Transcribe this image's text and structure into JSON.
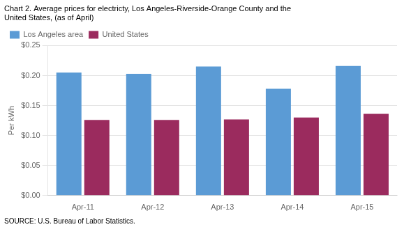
{
  "chart_data": {
    "type": "bar",
    "title": [
      "Chart 2. Average prices for electricty, Los Angeles-Riverside-Orange County and the",
      "United States, (as of April)"
    ],
    "ylabel": "Per kWh",
    "annotations": [
      "SOURCE: U.S. Bureau of Labor Statistics."
    ],
    "categories": [
      "Apr-11",
      "Apr-12",
      "Apr-13",
      "Apr-14",
      "Apr-15"
    ],
    "series": [
      {
        "name": "Los Angeles area",
        "color": "#5B9BD5",
        "values": [
          0.205,
          0.203,
          0.215,
          0.178,
          0.216
        ]
      },
      {
        "name": "United States",
        "color": "#9B2B5E",
        "values": [
          0.126,
          0.126,
          0.127,
          0.13,
          0.136
        ]
      }
    ],
    "ylim": [
      0,
      0.25
    ],
    "yticks": [
      {
        "value": 0.0,
        "label": "$0.00"
      },
      {
        "value": 0.05,
        "label": "$0.05"
      },
      {
        "value": 0.1,
        "label": "$0.10"
      },
      {
        "value": 0.15,
        "label": "$0.15"
      },
      {
        "value": 0.2,
        "label": "$0.20"
      },
      {
        "value": 0.25,
        "label": "$0.25"
      }
    ],
    "grid": true,
    "legend": "upper left"
  }
}
